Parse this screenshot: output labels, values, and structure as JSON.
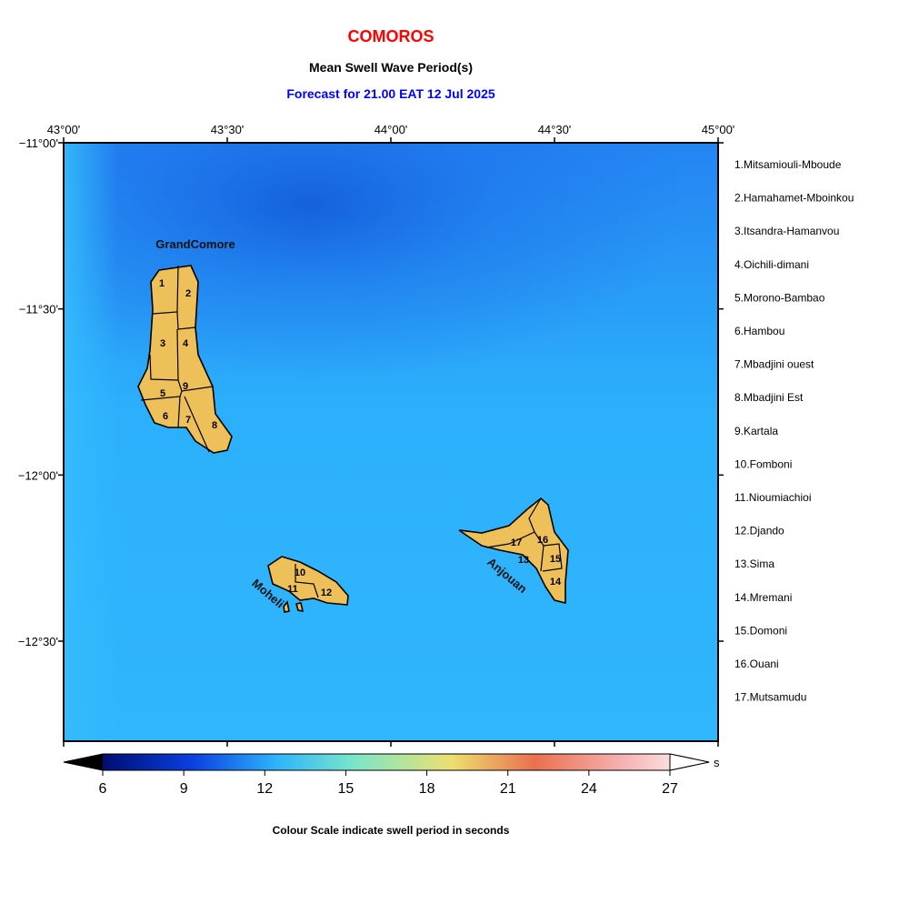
{
  "header": {
    "title": "COMOROS",
    "subtitle": "Mean Swell Wave Period(s)",
    "forecast": "Forecast for  21.00 EAT 12 Jul 2025"
  },
  "map": {
    "lon_labels": [
      "43°00'",
      "43°30'",
      "44°00'",
      "44°30'",
      "45°00'"
    ],
    "lat_labels": [
      "−11°00'",
      "−11°30'",
      "−12°00'",
      "−12°30'"
    ],
    "islands": [
      "GrandComore",
      "Moheli",
      "Anjouan"
    ],
    "region_labels": [
      "1",
      "2",
      "3",
      "4",
      "5",
      "6",
      "7",
      "8",
      "9",
      "10",
      "11",
      "12",
      "13",
      "14",
      "15",
      "16",
      "17"
    ]
  },
  "legend": [
    "1.Mitsamiouli-Mboude",
    "2.Hamahamet-Mboinkou",
    "3.Itsandra-Hamanvou",
    "4.Oichili-dimani",
    "5.Morono-Bambao",
    "6.Hambou",
    "7.Mbadjini ouest",
    "8.Mbadjini Est",
    "9.Kartala",
    "10.Fomboni",
    "11.Nioumiachioi",
    "12.Djando",
    "13.Sima",
    "14.Mremani",
    "15.Domoni",
    "16.Ouani",
    "17.Mutsamudu"
  ],
  "colorbar": {
    "ticks": [
      6,
      9,
      12,
      15,
      18,
      21,
      24,
      27
    ],
    "unit": "s",
    "caption": "Colour Scale indicate swell period in seconds"
  }
}
